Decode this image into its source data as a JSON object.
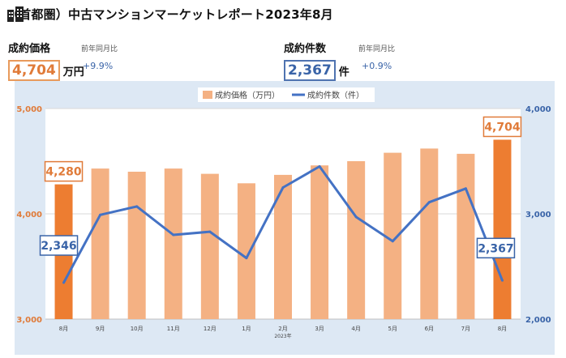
{
  "header": {
    "title": "（首都圏）中古マンションマーケットレポート2023年8月",
    "icon": "building-icon"
  },
  "kpi_price": {
    "label": "成約価格",
    "sub": "前年同月比",
    "value": "4,704",
    "unit": "万円",
    "change": "+9.9%"
  },
  "kpi_count": {
    "label": "成約件数",
    "sub": "前年同月比",
    "value": "2,367",
    "unit": "件",
    "change": "+0.9%"
  },
  "colors": {
    "bar": "#f4b183",
    "bar_highlight": "#ed7d31",
    "line": "#4472c4",
    "left_axis": "#e07b39",
    "right_axis": "#3a64a8",
    "plot_bg": "#ffffff",
    "outer_bg": "#dde8f4"
  },
  "chart_data": {
    "type": "bar+line",
    "categories": [
      "8月",
      "9月",
      "10月",
      "11月",
      "12月",
      "1月",
      "2月",
      "3月",
      "4月",
      "5月",
      "6月",
      "7月",
      "8月"
    ],
    "year_label": "2023年",
    "legend": [
      "成約価格（万円）",
      "成約件数（件）"
    ],
    "legend_placement": "top-center",
    "series": [
      {
        "name": "成約価格（万円）",
        "type": "bar",
        "axis": "left",
        "values": [
          4280,
          4430,
          4400,
          4430,
          4380,
          4290,
          4370,
          4460,
          4500,
          4580,
          4620,
          4570,
          4704
        ],
        "highlight": [
          0,
          12
        ]
      },
      {
        "name": "成約件数（件）",
        "type": "line",
        "axis": "right",
        "values": [
          2346,
          2990,
          3070,
          2800,
          2830,
          2580,
          3250,
          3450,
          2970,
          2740,
          3110,
          3240,
          2367
        ]
      }
    ],
    "left_axis": {
      "min": 3000,
      "max": 5000,
      "ticks": [
        "3,000",
        "4,000",
        "5,000"
      ]
    },
    "right_axis": {
      "min": 2000,
      "max": 4000,
      "ticks": [
        "2,000",
        "3,000",
        "4,000"
      ]
    },
    "annotations": [
      {
        "series": 0,
        "index": 0,
        "text": "4,280"
      },
      {
        "series": 0,
        "index": 12,
        "text": "4,704"
      },
      {
        "series": 1,
        "index": 0,
        "text": "2,346"
      },
      {
        "series": 1,
        "index": 12,
        "text": "2,367"
      }
    ]
  }
}
